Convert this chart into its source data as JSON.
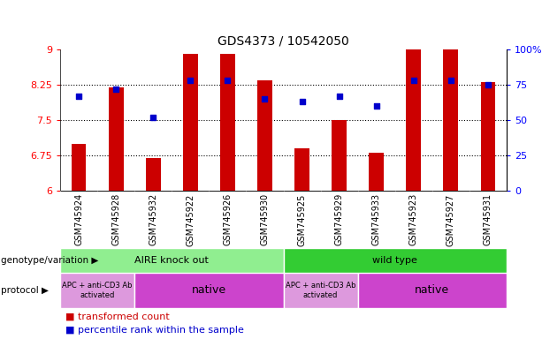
{
  "title": "GDS4373 / 10542050",
  "samples": [
    "GSM745924",
    "GSM745928",
    "GSM745932",
    "GSM745922",
    "GSM745926",
    "GSM745930",
    "GSM745925",
    "GSM745929",
    "GSM745933",
    "GSM745923",
    "GSM745927",
    "GSM745931"
  ],
  "bar_values": [
    7.0,
    8.2,
    6.7,
    8.9,
    8.9,
    8.35,
    6.9,
    7.5,
    6.8,
    9.0,
    9.0,
    8.3
  ],
  "dot_values": [
    67,
    72,
    52,
    78,
    78,
    65,
    63,
    67,
    60,
    78,
    78,
    75
  ],
  "ylim_left": [
    6,
    9
  ],
  "ylim_right": [
    0,
    100
  ],
  "yticks_left": [
    6,
    6.75,
    7.5,
    8.25,
    9
  ],
  "ytick_labels_left": [
    "6",
    "6.75",
    "7.5",
    "8.25",
    "9"
  ],
  "yticks_right": [
    0,
    25,
    50,
    75,
    100
  ],
  "ytick_labels_right": [
    "0",
    "25",
    "50",
    "75",
    "100%"
  ],
  "bar_color": "#CC0000",
  "dot_color": "#0000CC",
  "tick_area_color": "#c8c8c8",
  "genotype_aire_color": "#90EE90",
  "genotype_wild_color": "#33CC33",
  "protocol_apc_color": "#DD99DD",
  "protocol_native_color": "#CC44CC",
  "legend_bar_label": "transformed count",
  "legend_dot_label": "percentile rank within the sample",
  "genotype_label": "genotype/variation",
  "protocol_label": "protocol",
  "aire_label": "AIRE knock out",
  "wild_label": "wild type",
  "apc_label_1": "APC + anti-CD3 Ab\nactivated",
  "native_label_1": "native",
  "apc_label_2": "APC + anti-CD3 Ab\nactivated",
  "native_label_2": "native",
  "n_aire": 6,
  "n_wild": 6,
  "n_apc1": 2,
  "n_native1": 4,
  "n_apc2": 2,
  "n_native2": 4
}
